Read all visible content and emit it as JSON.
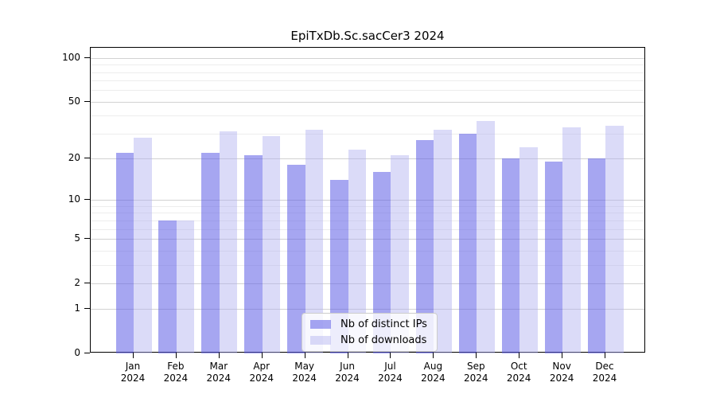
{
  "chart_data": {
    "type": "bar",
    "title": "EpiTxDb.Sc.sacCer3 2024",
    "categories": [
      "Jan 2024",
      "Feb 2024",
      "Mar 2024",
      "Apr 2024",
      "May 2024",
      "Jun 2024",
      "Jul 2024",
      "Aug 2024",
      "Sep 2024",
      "Oct 2024",
      "Nov 2024",
      "Dec 2024"
    ],
    "series": [
      {
        "name": "Nb of distinct IPs",
        "values": [
          22,
          7,
          22,
          21,
          18,
          14,
          16,
          27,
          30,
          20,
          19,
          20
        ]
      },
      {
        "name": "Nb of downloads",
        "values": [
          28,
          7,
          31,
          29,
          32,
          23,
          21,
          32,
          37,
          24,
          33,
          34
        ]
      }
    ],
    "y_scale": "log1p",
    "y_ticks": [
      0,
      1,
      2,
      5,
      10,
      20,
      50,
      100
    ],
    "y_minor_gridlines": [
      3,
      4,
      6,
      7,
      8,
      9,
      30,
      40,
      60,
      70,
      80,
      90
    ],
    "ylim": [
      0,
      100
    ],
    "xlabel": "",
    "ylabel": "",
    "grid": true,
    "legend_position": "bottom-center"
  },
  "colors": {
    "ips_fill": "rgba(92,92,230,0.55)",
    "downloads_fill": "rgba(176,176,239,0.45)",
    "grid_major": "#d2d2d2",
    "grid_minor": "#ededed",
    "axis": "#000000",
    "legend_border": "#cccccc",
    "legend_bg": "rgba(255,255,255,0.8)"
  }
}
